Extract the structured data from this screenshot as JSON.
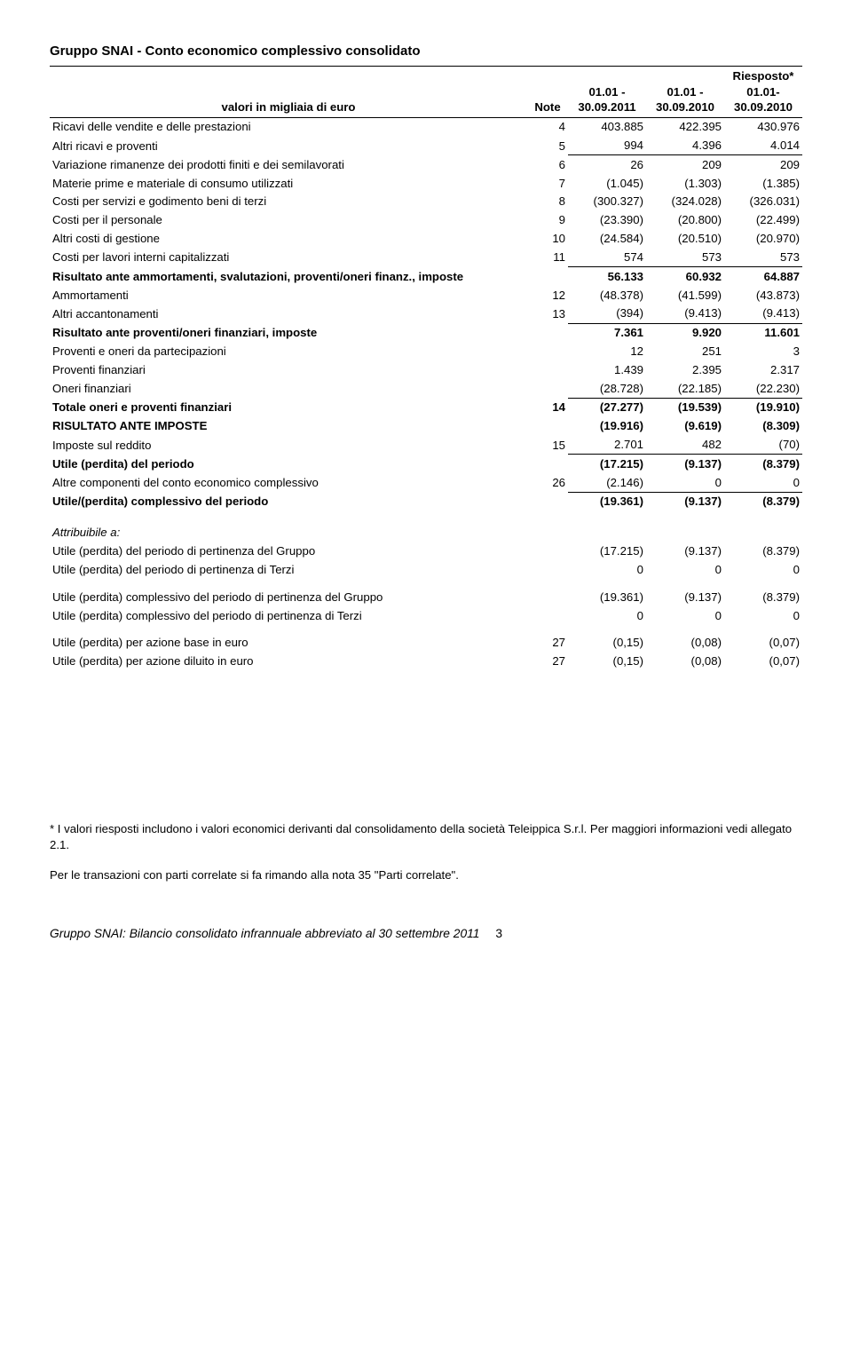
{
  "title": "Gruppo SNAI - Conto economico complessivo consolidato",
  "columns": {
    "labelHeader": "valori in migliaia di euro",
    "noteHeader": "Note",
    "col1": "01.01 -\n30.09.2011",
    "col2": "01.01 -\n30.09.2010",
    "col3": "Riesposto*\n01.01-\n30.09.2010"
  },
  "rows": [
    {
      "label": "Ricavi delle vendite e delle prestazioni",
      "note": "4",
      "c1": "403.885",
      "c2": "422.395",
      "c3": "430.976",
      "u": false,
      "b": false
    },
    {
      "label": "Altri ricavi e proventi",
      "note": "5",
      "c1": "994",
      "c2": "4.396",
      "c3": "4.014",
      "u": true,
      "b": false
    },
    {
      "label": "Variazione rimanenze dei prodotti finiti e dei semilavorati",
      "note": "6",
      "c1": "26",
      "c2": "209",
      "c3": "209",
      "u": false,
      "b": false
    },
    {
      "label": "Materie prime e materiale di consumo utilizzati",
      "note": "7",
      "c1": "(1.045)",
      "c2": "(1.303)",
      "c3": "(1.385)",
      "u": false,
      "b": false
    },
    {
      "label": "Costi per servizi e godimento beni di terzi",
      "note": "8",
      "c1": "(300.327)",
      "c2": "(324.028)",
      "c3": "(326.031)",
      "u": false,
      "b": false
    },
    {
      "label": "Costi per il personale",
      "note": "9",
      "c1": "(23.390)",
      "c2": "(20.800)",
      "c3": "(22.499)",
      "u": false,
      "b": false
    },
    {
      "label": "Altri costi di gestione",
      "note": "10",
      "c1": "(24.584)",
      "c2": "(20.510)",
      "c3": "(20.970)",
      "u": false,
      "b": false
    },
    {
      "label": "Costi per lavori interni capitalizzati",
      "note": "11",
      "c1": "574",
      "c2": "573",
      "c3": "573",
      "u": true,
      "b": false
    },
    {
      "label": "Risultato ante ammortamenti, svalutazioni, proventi/oneri finanz., imposte",
      "note": "",
      "c1": "56.133",
      "c2": "60.932",
      "c3": "64.887",
      "u": false,
      "b": true
    },
    {
      "label": "Ammortamenti",
      "note": "12",
      "c1": "(48.378)",
      "c2": "(41.599)",
      "c3": "(43.873)",
      "u": false,
      "b": false
    },
    {
      "label": "Altri accantonamenti",
      "note": "13",
      "c1": "(394)",
      "c2": "(9.413)",
      "c3": "(9.413)",
      "u": true,
      "b": false
    },
    {
      "label": "Risultato ante proventi/oneri finanziari, imposte",
      "note": "",
      "c1": "7.361",
      "c2": "9.920",
      "c3": "11.601",
      "u": false,
      "b": true
    },
    {
      "label": "Proventi e oneri da partecipazioni",
      "note": "",
      "c1": "12",
      "c2": "251",
      "c3": "3",
      "u": false,
      "b": false
    },
    {
      "label": "Proventi finanziari",
      "note": "",
      "c1": "1.439",
      "c2": "2.395",
      "c3": "2.317",
      "u": false,
      "b": false
    },
    {
      "label": "Oneri finanziari",
      "note": "",
      "c1": "(28.728)",
      "c2": "(22.185)",
      "c3": "(22.230)",
      "u": true,
      "b": false
    },
    {
      "label": "Totale oneri e proventi finanziari",
      "note": "14",
      "c1": "(27.277)",
      "c2": "(19.539)",
      "c3": "(19.910)",
      "u": false,
      "b": true
    },
    {
      "label": "RISULTATO ANTE IMPOSTE",
      "note": "",
      "c1": "(19.916)",
      "c2": "(9.619)",
      "c3": "(8.309)",
      "u": false,
      "b": true
    },
    {
      "label": "Imposte sul reddito",
      "note": "15",
      "c1": "2.701",
      "c2": "482",
      "c3": "(70)",
      "u": true,
      "b": false
    },
    {
      "label": "Utile (perdita) del periodo",
      "note": "",
      "c1": "(17.215)",
      "c2": "(9.137)",
      "c3": "(8.379)",
      "u": false,
      "b": true
    },
    {
      "label": "Altre componenti del conto economico complessivo",
      "note": "26",
      "c1": "(2.146)",
      "c2": "0",
      "c3": "0",
      "u": true,
      "b": false
    },
    {
      "label": "Utile/(perdita) complessivo del periodo",
      "note": "",
      "c1": "(19.361)",
      "c2": "(9.137)",
      "c3": "(8.379)",
      "u": false,
      "b": true
    }
  ],
  "attrib": {
    "heading": "Attribuibile a:",
    "r1": {
      "label": "Utile (perdita) del periodo di pertinenza del Gruppo",
      "c1": "(17.215)",
      "c2": "(9.137)",
      "c3": "(8.379)"
    },
    "r2": {
      "label": "Utile (perdita) del periodo di pertinenza di Terzi",
      "c1": "0",
      "c2": "0",
      "c3": "0"
    },
    "r3": {
      "label": "Utile (perdita) complessivo del periodo di pertinenza del Gruppo",
      "c1": "(19.361)",
      "c2": "(9.137)",
      "c3": "(8.379)"
    },
    "r4": {
      "label": "Utile (perdita) complessivo del periodo di pertinenza di Terzi",
      "c1": "0",
      "c2": "0",
      "c3": "0"
    },
    "r5": {
      "label": "Utile (perdita) per azione base in euro",
      "note": "27",
      "c1": "(0,15)",
      "c2": "(0,08)",
      "c3": "(0,07)"
    },
    "r6": {
      "label": "Utile (perdita) per azione diluito in euro",
      "note": "27",
      "c1": "(0,15)",
      "c2": "(0,08)",
      "c3": "(0,07)"
    }
  },
  "footnote1": "* I valori riesposti includono i valori economici derivanti dal consolidamento della società Teleippica S.r.l. Per maggiori informazioni vedi allegato 2.1.",
  "footnote2": "Per le transazioni con parti correlate si fa rimando alla nota 35 \"Parti correlate\".",
  "pageFooter": "Gruppo SNAI: Bilancio consolidato infrannuale abbreviato al 30 settembre 2011",
  "pageNumber": "3"
}
